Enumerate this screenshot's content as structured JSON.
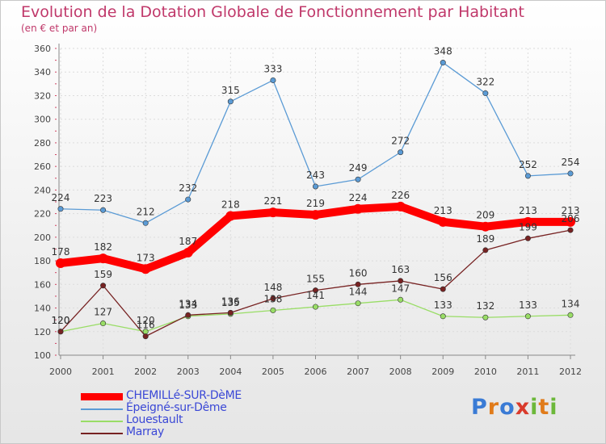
{
  "title": "Evolution de la Dotation Globale de Fonctionnement par Habitant",
  "subtitle": "(en € et par an)",
  "logo": {
    "text": "Proxiti",
    "letters": [
      "P",
      "r",
      "o",
      "x",
      "i",
      "t",
      "i"
    ],
    "colors": [
      "#3a7bd5",
      "#e07b1a",
      "#3a7bd5",
      "#d93a2b",
      "#6cb83a",
      "#e07b1a",
      "#6cb83a"
    ]
  },
  "chart_data": {
    "type": "line",
    "x": [
      "2000",
      "2001",
      "2002",
      "2003",
      "2004",
      "2005",
      "2006",
      "2007",
      "2008",
      "2009",
      "2010",
      "2011",
      "2012"
    ],
    "ylim": [
      100,
      360
    ],
    "yticks": [
      "100",
      "120",
      "140",
      "160",
      "180",
      "200",
      "220",
      "240",
      "260",
      "280",
      "300",
      "320",
      "340",
      "360"
    ],
    "grid": true,
    "legend_position": "bottom-left",
    "series": [
      {
        "name": "CHEMILLé-SUR-DèME",
        "color": "#ff0000",
        "values": [
          178,
          182,
          173,
          187,
          218,
          221,
          219,
          224,
          226,
          213,
          209,
          213,
          213
        ],
        "labels": [
          "178",
          "182",
          "173",
          "187",
          "218",
          "221",
          "219",
          "224",
          "226",
          "213",
          "209",
          "213",
          "213"
        ]
      },
      {
        "name": "Épeigné-sur-Dême",
        "color": "#5b9bd5",
        "values": [
          224,
          223,
          212,
          232,
          315,
          333,
          243,
          249,
          272,
          348,
          322,
          252,
          254
        ],
        "labels": [
          "224",
          "223",
          "212",
          "232",
          "315",
          "333",
          "243",
          "249",
          "272",
          "348",
          "322",
          "252",
          "254"
        ]
      },
      {
        "name": "Louestault",
        "color": "#99dd66",
        "values": [
          120,
          127,
          120,
          133,
          135,
          138,
          141,
          144,
          147,
          133,
          132,
          133,
          134
        ],
        "labels": [
          "120",
          "127",
          "120",
          "133",
          "135",
          "138",
          "141",
          "144",
          "147",
          "133",
          "132",
          "133",
          "134"
        ]
      },
      {
        "name": "Marray",
        "color": "#772222",
        "values": [
          120,
          159,
          116,
          134,
          136,
          148,
          155,
          160,
          163,
          156,
          189,
          199,
          206
        ],
        "labels": [
          "120",
          "159",
          "116",
          "134",
          "136",
          "148",
          "155",
          "160",
          "163",
          "156",
          "189",
          "199",
          "206"
        ]
      }
    ]
  }
}
